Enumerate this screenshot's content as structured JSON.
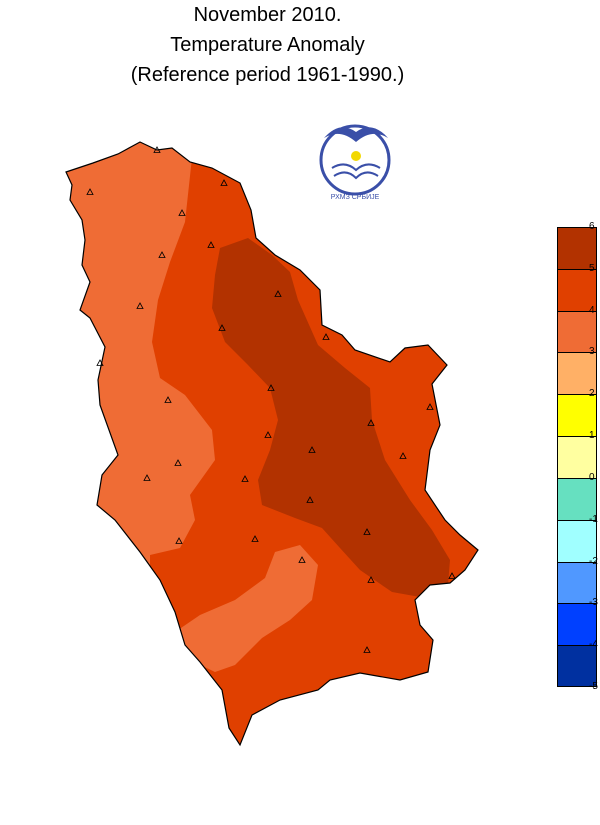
{
  "title": {
    "line1": "November 2010.",
    "line2": "Temperature Anomaly",
    "line3": "(Reference period 1961-1990.)"
  },
  "logo": {
    "name": "rhmz-logo",
    "text": "РХМЗ СРБИЈЕ",
    "colors": {
      "ring": "#3a4fa8",
      "sun": "#f2d800"
    }
  },
  "legend": {
    "ticks": [
      "6",
      "5",
      "4",
      "3",
      "2",
      "1",
      "0",
      "-1",
      "-2",
      "-3",
      "-4",
      "-5"
    ],
    "classes": [
      {
        "range": [
          5,
          6
        ],
        "color": "#b23200"
      },
      {
        "range": [
          4,
          5
        ],
        "color": "#e04000"
      },
      {
        "range": [
          3,
          4
        ],
        "color": "#ef6c35"
      },
      {
        "range": [
          2,
          3
        ],
        "color": "#ffb066"
      },
      {
        "range": [
          1,
          2
        ],
        "color": "#ffff00"
      },
      {
        "range": [
          0,
          1
        ],
        "color": "#ffffa0"
      },
      {
        "range": [
          -1,
          0
        ],
        "color": "#66e0c0"
      },
      {
        "range": [
          -2,
          -1
        ],
        "color": "#a0ffff"
      },
      {
        "range": [
          -3,
          -2
        ],
        "color": "#5098ff"
      },
      {
        "range": [
          -4,
          -3
        ],
        "color": "#0040ff"
      },
      {
        "range": [
          -5,
          -4
        ],
        "color": "#0030a0"
      }
    ]
  },
  "map": {
    "zone_colors": {
      "low": "#ef6c35",
      "mid": "#e04000",
      "high": "#b23200"
    },
    "station_count": 29,
    "station_marker": "triangle"
  }
}
